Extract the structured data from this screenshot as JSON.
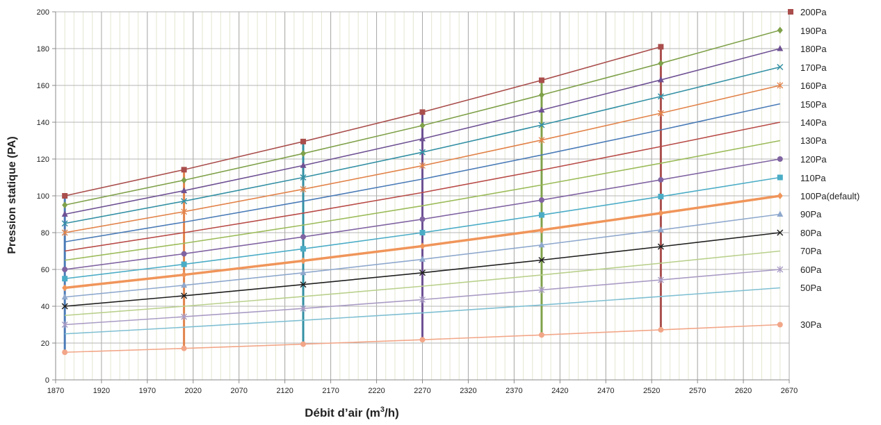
{
  "chart_data": {
    "type": "line",
    "title": "",
    "xlabel": "Débit d’air (m3/h)",
    "xlabel_base": "Débit d’air (m",
    "xlabel_sup": "3",
    "xlabel_tail": "/h)",
    "ylabel": "Pression statique  (PA)",
    "xlim": [
      1870,
      2670
    ],
    "ylim": [
      0,
      200
    ],
    "x_ticks": [
      1870,
      1920,
      1970,
      2020,
      2070,
      2120,
      2170,
      2220,
      2270,
      2320,
      2370,
      2420,
      2470,
      2520,
      2570,
      2620,
      2670
    ],
    "y_ticks": [
      0,
      20,
      40,
      60,
      80,
      100,
      120,
      140,
      160,
      180,
      200
    ],
    "x_minor_step": 10,
    "grid": true,
    "legend_position": "right",
    "marker_x": [
      1880,
      2010,
      2140,
      2270,
      2400,
      2530,
      2660
    ],
    "series": [
      {
        "name": "200Pa",
        "color": "#A94E4C",
        "marker": "square",
        "values": [
          100,
          114.2,
          129.5,
          145.5,
          162.8,
          181
        ]
      },
      {
        "name": "190Pa",
        "color": "#7FA14A",
        "marker": "diamond",
        "values": [
          95,
          108.5,
          123,
          138.2,
          154.8,
          172,
          190
        ]
      },
      {
        "name": "180Pa",
        "color": "#6E5193",
        "marker": "triangle",
        "values": [
          90,
          102.8,
          116.5,
          131,
          146.6,
          163,
          180
        ]
      },
      {
        "name": "170Pa",
        "color": "#3390A4",
        "marker": "x",
        "values": [
          85,
          97.1,
          110,
          123.7,
          138.5,
          154,
          170
        ]
      },
      {
        "name": "160Pa",
        "color": "#E2834A",
        "marker": "star",
        "values": [
          80,
          91.4,
          103.6,
          116.4,
          130.3,
          144.9,
          160
        ]
      },
      {
        "name": "150Pa",
        "color": "#4A7BB7",
        "marker": "none",
        "values": [
          75,
          85.7,
          97.1,
          109.1,
          122.2,
          135.8,
          150
        ]
      },
      {
        "name": "140Pa",
        "color": "#B84B47",
        "marker": "none",
        "values": [
          70,
          80,
          90.6,
          101.8,
          114,
          126.8,
          140
        ]
      },
      {
        "name": "130Pa",
        "color": "#9BBB59",
        "marker": "none",
        "values": [
          65,
          74.2,
          84.1,
          94.6,
          105.9,
          117.7,
          130
        ]
      },
      {
        "name": "120Pa",
        "color": "#8064A2",
        "marker": "circle",
        "values": [
          60,
          68.5,
          77.7,
          87.3,
          97.7,
          108.7,
          120
        ]
      },
      {
        "name": "110Pa",
        "color": "#4BACC6",
        "marker": "square",
        "values": [
          55,
          62.8,
          71.2,
          80,
          89.6,
          99.6,
          110
        ]
      },
      {
        "name": "100Pa(default)",
        "color": "#F0955A",
        "marker": "diamond",
        "bold": true,
        "values": [
          50,
          57.1,
          64.7,
          72.7,
          81.4,
          90.6,
          100
        ]
      },
      {
        "name": "90Pa",
        "color": "#8EA8CD",
        "marker": "triangle",
        "values": [
          45,
          51.4,
          58.2,
          65.5,
          73.3,
          81.5,
          90
        ]
      },
      {
        "name": "80Pa",
        "color": "#1F1F1F",
        "marker": "x",
        "values": [
          40,
          45.7,
          51.8,
          58.2,
          65.1,
          72.4,
          80
        ]
      },
      {
        "name": "70Pa",
        "color": "#B9D08C",
        "marker": "none",
        "values": [
          35,
          40,
          45.3,
          50.9,
          57,
          63.4,
          70
        ]
      },
      {
        "name": "60Pa",
        "color": "#A99BC4",
        "marker": "star",
        "values": [
          30,
          34.3,
          38.8,
          43.6,
          48.9,
          54.3,
          60
        ]
      },
      {
        "name": "50Pa",
        "color": "#7FBFD2",
        "marker": "none",
        "values": [
          25,
          28.6,
          32.4,
          36.4,
          40.7,
          45.3,
          50
        ]
      },
      {
        "name": "30Pa",
        "color": "#F2A688",
        "marker": "circle",
        "values": [
          15,
          17.1,
          19.4,
          21.8,
          24.4,
          27.2,
          30
        ]
      }
    ],
    "drop_lines": [
      {
        "x": 1880,
        "top": 100,
        "color": "#4A7BB7"
      },
      {
        "x": 2010,
        "top": 114.2,
        "color": "#E2834A"
      },
      {
        "x": 2140,
        "top": 129.5,
        "color": "#3390A4"
      },
      {
        "x": 2270,
        "top": 145.5,
        "color": "#6E5193"
      },
      {
        "x": 2400,
        "top": 162.8,
        "color": "#7FA14A"
      },
      {
        "x": 2530,
        "top": 181,
        "color": "#A94E4C"
      }
    ]
  }
}
